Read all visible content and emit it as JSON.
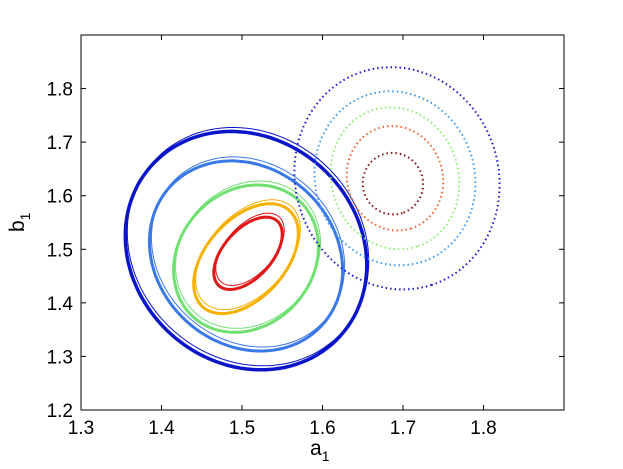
{
  "chart_data": {
    "type": "contour",
    "title": "",
    "xlabel": "a",
    "xlabel_sub": "1",
    "ylabel": "b",
    "ylabel_sub": "1",
    "xlim": [
      1.3,
      1.9
    ],
    "ylim": [
      1.2,
      1.9
    ],
    "xticks": [
      1.3,
      1.4,
      1.5,
      1.6,
      1.7,
      1.8
    ],
    "yticks": [
      1.2,
      1.3,
      1.4,
      1.5,
      1.6,
      1.7,
      1.8
    ],
    "xtick_labels": [
      "1.3",
      "1.4",
      "1.5",
      "1.6",
      "1.7",
      "1.8"
    ],
    "ytick_labels": [
      "1.2",
      "1.3",
      "1.4",
      "1.5",
      "1.6",
      "1.7",
      "1.8"
    ],
    "grid": false,
    "series": [
      {
        "style": "solid",
        "center": [
          1.51,
          1.49
        ],
        "contours": [
          {
            "color": "#0a14c8",
            "x_range": [
              1.355,
              1.655
            ],
            "y_range": [
              1.275,
              1.72
            ]
          },
          {
            "color": "#3a78e8",
            "x_range": [
              1.385,
              1.625
            ],
            "y_range": [
              1.31,
              1.665
            ]
          },
          {
            "color": "#70e070",
            "x_range": [
              1.415,
              1.595
            ],
            "y_range": [
              1.345,
              1.62
            ]
          },
          {
            "color": "#f7b000",
            "x_range": [
              1.44,
              1.57
            ],
            "y_range": [
              1.38,
              1.585
            ]
          },
          {
            "color": "#e01818",
            "x_range": [
              1.465,
              1.55
            ],
            "y_range": [
              1.425,
              1.56
            ]
          }
        ]
      },
      {
        "style": "dotted",
        "center": [
          1.69,
          1.63
        ],
        "contours": [
          {
            "color": "#1a1ad0",
            "x_range": [
              1.565,
              1.82
            ],
            "y_range": [
              1.425,
              1.84
            ]
          },
          {
            "color": "#3a9aee",
            "x_range": [
              1.59,
              1.79
            ],
            "y_range": [
              1.47,
              1.795
            ]
          },
          {
            "color": "#88ee70",
            "x_range": [
              1.61,
              1.77
            ],
            "y_range": [
              1.5,
              1.765
            ]
          },
          {
            "color": "#f06030",
            "x_range": [
              1.63,
              1.75
            ],
            "y_range": [
              1.535,
              1.73
            ]
          },
          {
            "color": "#8a1010",
            "x_range": [
              1.65,
              1.725
            ],
            "y_range": [
              1.565,
              1.68
            ]
          }
        ]
      }
    ]
  }
}
